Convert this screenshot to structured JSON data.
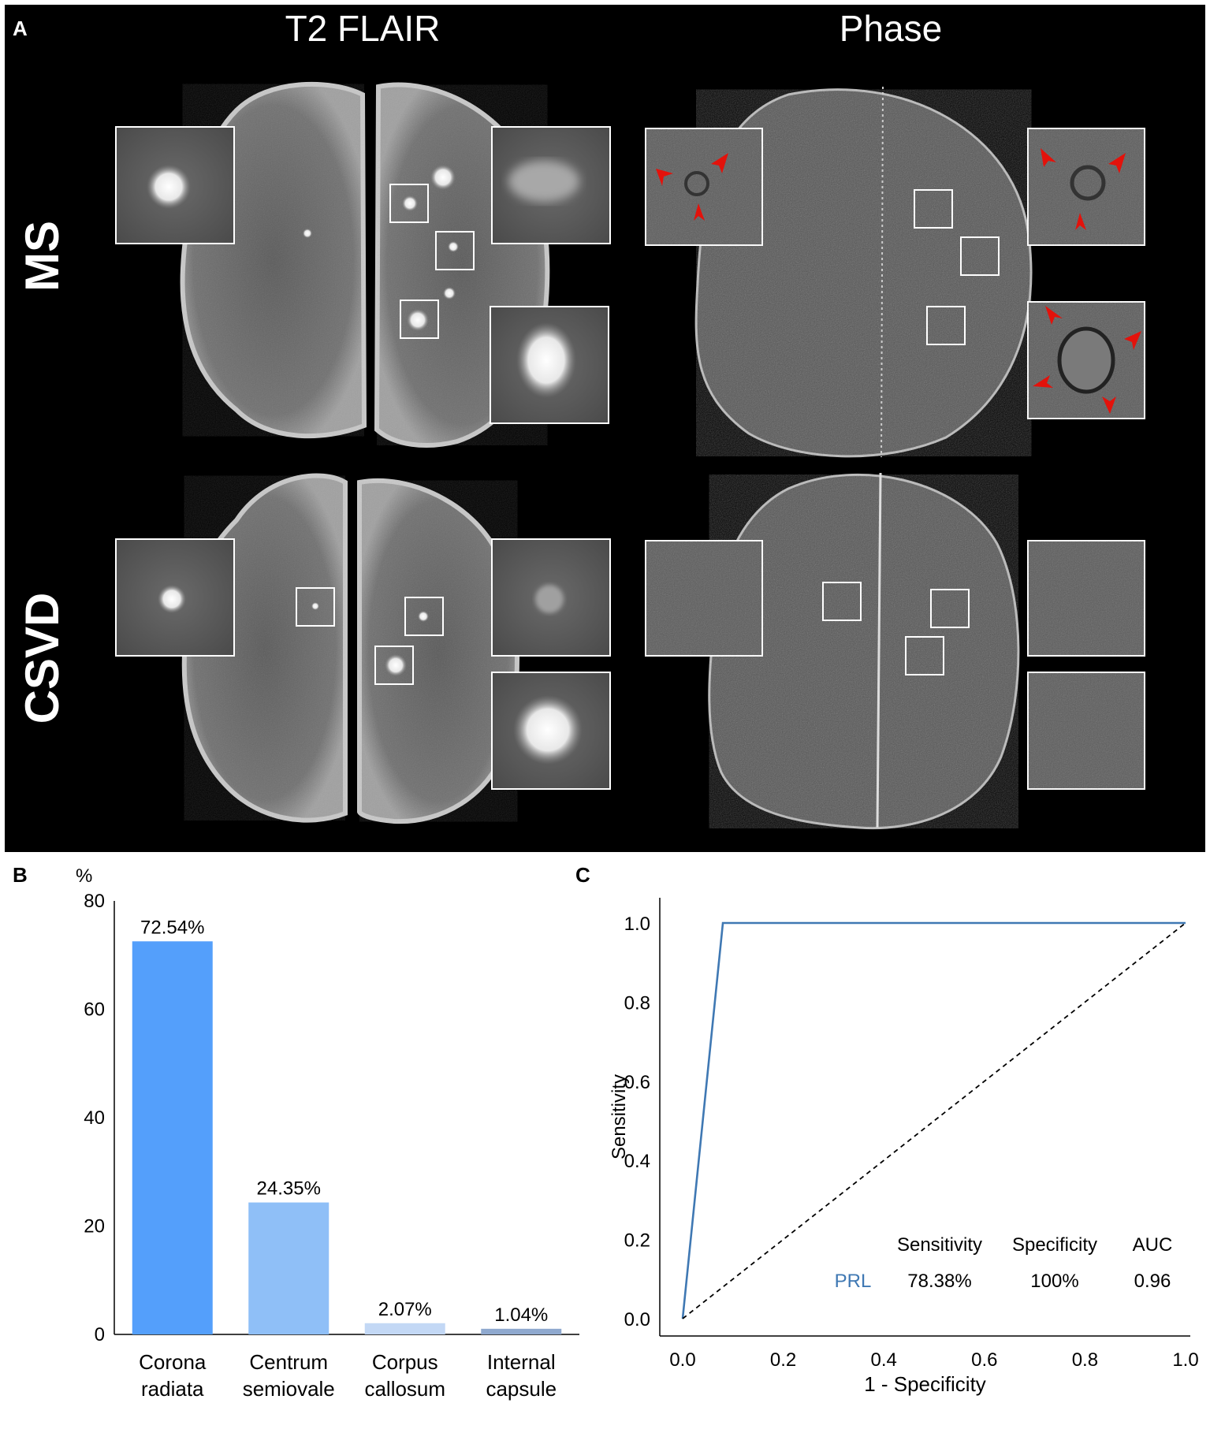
{
  "panel_a": {
    "letter": "A",
    "columns": [
      "T2 FLAIR",
      "Phase"
    ],
    "rows": [
      "MS",
      "CSVD"
    ],
    "colors": {
      "background": "#000000",
      "inset_border": "#ffffff",
      "arrowhead": "#e3120b"
    }
  },
  "chart_data": [
    {
      "panel": "B",
      "type": "bar",
      "ylabel": "%",
      "ylim": [
        0,
        80
      ],
      "yticks": [
        0,
        20,
        40,
        60,
        80
      ],
      "categories": [
        [
          "Corona",
          "radiata"
        ],
        [
          "Centrum",
          "semiovale"
        ],
        [
          "Corpus",
          "callosum"
        ],
        [
          "Internal",
          "capsule"
        ]
      ],
      "values": [
        72.54,
        24.35,
        2.07,
        1.04
      ],
      "data_labels": [
        "72.54%",
        "24.35%",
        "2.07%",
        "1.04%"
      ],
      "colors": [
        "#549ffb",
        "#8fbff7",
        "#c3d8f5",
        "#8fa9cf"
      ]
    },
    {
      "panel": "C",
      "type": "line",
      "xlabel": "1 - Specificity",
      "ylabel": "Sensitivity",
      "xlim": [
        0,
        1
      ],
      "ylim": [
        0,
        1
      ],
      "xticks": [
        "0.0",
        "0.2",
        "0.4",
        "0.6",
        "0.8",
        "1.0"
      ],
      "yticks": [
        "0.0",
        "0.2",
        "0.4",
        "0.6",
        "0.8",
        "1.0"
      ],
      "series": [
        {
          "x": [
            0.0,
            0.08,
            1.0
          ],
          "y": [
            0.0,
            1.0,
            1.0
          ],
          "color": "#3f78b3"
        },
        {
          "x": [
            0.0,
            1.0
          ],
          "y": [
            0.0,
            1.0
          ],
          "color": "#000000",
          "dash": true
        }
      ],
      "table": {
        "headers": [
          "Sensitivity",
          "Specificity",
          "AUC"
        ],
        "rows": [
          {
            "label": "PRL",
            "values": [
              "78.38%",
              "100%",
              "0.96"
            ]
          }
        ]
      }
    }
  ]
}
